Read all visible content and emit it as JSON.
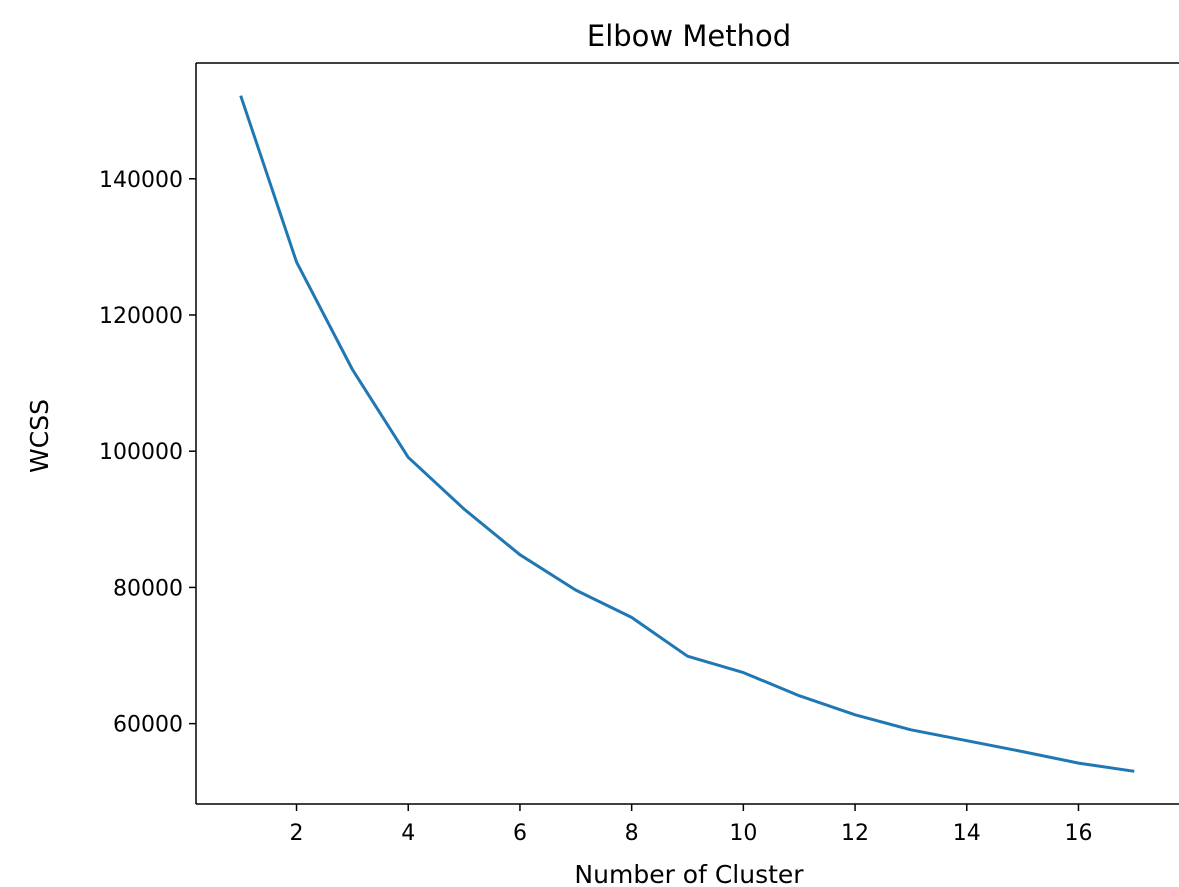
{
  "chart_data": {
    "type": "line",
    "title": "Elbow Method",
    "xlabel": "Number of Cluster",
    "ylabel": "WCSS",
    "xlim": [
      0.2,
      17.8
    ],
    "ylim": [
      48200,
      157000
    ],
    "xticks": [
      2,
      4,
      6,
      8,
      10,
      12,
      14,
      16
    ],
    "yticks": [
      60000,
      80000,
      100000,
      120000,
      140000
    ],
    "grid": false,
    "series": [
      {
        "color": "#1f77b4",
        "x": [
          1,
          2,
          3,
          4,
          5,
          6,
          7,
          8,
          9,
          10,
          11,
          12,
          13,
          14,
          15,
          16,
          17
        ],
        "y": [
          152200,
          127800,
          112000,
          99100,
          91500,
          84800,
          79600,
          75600,
          69900,
          67500,
          64100,
          61300,
          59100,
          57500,
          55900,
          54200,
          53000
        ]
      }
    ]
  }
}
